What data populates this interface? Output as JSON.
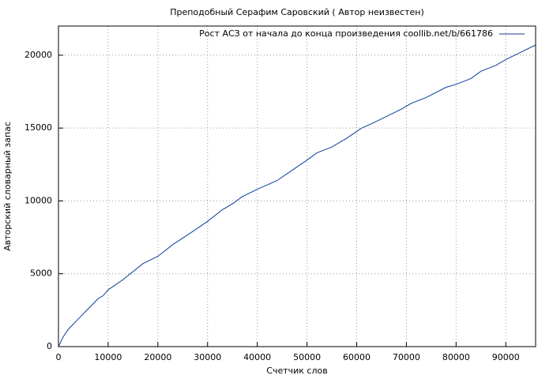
{
  "chart_data": {
    "type": "line",
    "title": "Преподобный Серафим Саровский ( Автор неизвестен)",
    "x_label": "Счетчик слов",
    "y_label": "Авторский словарный запас",
    "x": [
      0,
      1000,
      2000,
      4000,
      6000,
      8000,
      9000,
      10000,
      13000,
      17000,
      20000,
      23000,
      27000,
      30000,
      33000,
      35000,
      37000,
      40000,
      42000,
      44000,
      47000,
      50000,
      52000,
      55000,
      58000,
      61000,
      63000,
      66000,
      69000,
      71000,
      74000,
      78000,
      80000,
      83000,
      85000,
      88000,
      90000,
      93000,
      96000
    ],
    "series": [
      {
        "name": "Рост АСЗ от начала до конца произведения coollib.net/b/661786",
        "color": "#0a3c9c",
        "values": [
          0,
          700,
          1200,
          1900,
          2600,
          3300,
          3500,
          3900,
          4600,
          5700,
          6200,
          7000,
          7900,
          8600,
          9400,
          9800,
          10300,
          10800,
          11100,
          11400,
          12100,
          12800,
          13300,
          13700,
          14300,
          15000,
          15300,
          15800,
          16300,
          16700,
          17100,
          17800,
          18000,
          18400,
          18900,
          19300,
          19700,
          20200,
          20700
        ]
      }
    ],
    "xlim": [
      0,
      96000
    ],
    "ylim": [
      0,
      22000
    ],
    "xticks": [
      0,
      10000,
      20000,
      30000,
      40000,
      50000,
      60000,
      70000,
      80000,
      90000
    ],
    "yticks": [
      0,
      5000,
      10000,
      15000,
      20000
    ],
    "grid": true,
    "legend": "top-right"
  }
}
